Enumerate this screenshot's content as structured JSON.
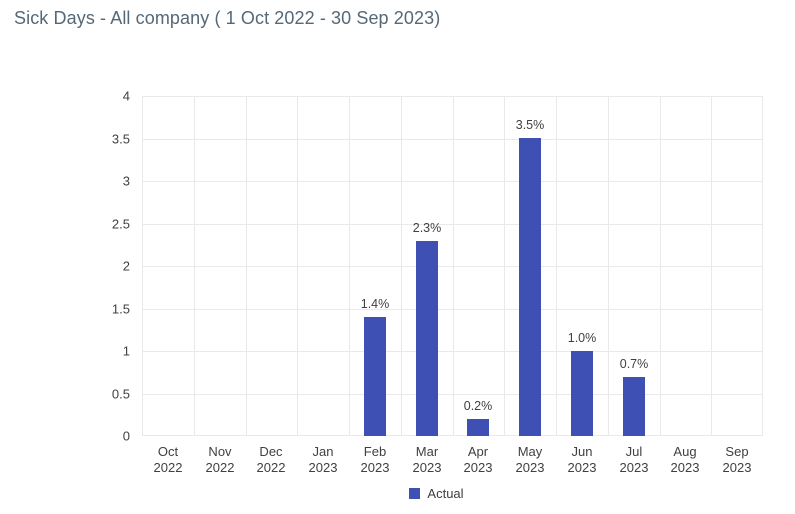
{
  "header": {
    "title": "Sick Days - All company ( 1 Oct 2022 - 30 Sep 2023)"
  },
  "colors": {
    "bar": "#3E50B4",
    "grid": "#e9e9e9",
    "axis_text": "#404040",
    "title_text": "#556878",
    "background": "#ffffff"
  },
  "chart_data": {
    "type": "bar",
    "title": "Sick Days - All company ( 1 Oct 2022 - 30 Sep 2023)",
    "categories": [
      "Oct 2022",
      "Nov 2022",
      "Dec 2022",
      "Jan 2023",
      "Feb 2023",
      "Mar 2023",
      "Apr 2023",
      "May 2023",
      "Jun 2023",
      "Jul 2023",
      "Aug 2023",
      "Sep 2023"
    ],
    "series": [
      {
        "name": "Actual",
        "values": [
          0,
          0,
          0,
          0,
          1.4,
          2.3,
          0.2,
          3.5,
          1.0,
          0.7,
          0,
          0
        ],
        "data_labels": [
          "",
          "",
          "",
          "",
          "1.4%",
          "2.3%",
          "0.2%",
          "3.5%",
          "1.0%",
          "0.7%",
          "",
          ""
        ]
      }
    ],
    "xlabel": "",
    "ylabel": "",
    "ylim": [
      0,
      4
    ],
    "yticks": [
      0,
      0.5,
      1,
      1.5,
      2,
      2.5,
      3,
      3.5,
      4
    ],
    "grid": true,
    "legend": {
      "position": "bottom",
      "entries": [
        "Actual"
      ]
    }
  },
  "legend": {
    "label": "Actual"
  }
}
